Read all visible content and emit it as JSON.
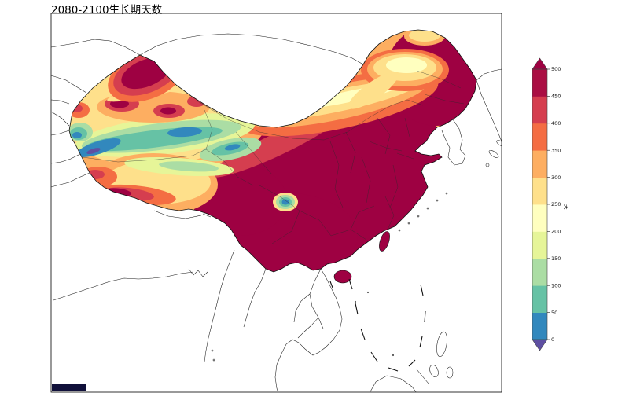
{
  "title": "2080-2100生长期天数",
  "colorbar": {
    "unit": "天",
    "ticks": [
      "500",
      "450",
      "400",
      "350",
      "300",
      "250",
      "200",
      "150",
      "100",
      "50",
      "0"
    ],
    "levels": [
      0,
      50,
      100,
      150,
      200,
      250,
      300,
      350,
      400,
      450,
      500
    ],
    "bin_colors_bottom_to_top": [
      "#3288bd",
      "#66c2a5",
      "#abdda4",
      "#e6f598",
      "#ffffbf",
      "#fee08b",
      "#fdae61",
      "#f46d43",
      "#d53e4f",
      "#aa0e43"
    ],
    "extend_over_color": "#9e0142",
    "extend_under_color": "#5e4fa2"
  },
  "map": {
    "border_color": "#111111",
    "coastline_color": "#1a1a1a"
  },
  "chart_data": {
    "type": "filled-contour-map",
    "title": "2080-2100生长期天数",
    "levels": [
      0,
      50,
      100,
      150,
      200,
      250,
      300,
      350,
      400,
      450,
      500
    ],
    "unit": "天",
    "colorbar_orientation": "vertical-right",
    "shaded_region": "China (province boundaries shown); surrounding Asia coastlines unshaded",
    "pattern": "high values (>450) over south/east China, northeast China and Tarim/north Xinjiang; low values (0-100) in a band across west Xinjiang-Qinghai; mid values over Tibet and Inner Mongolia"
  }
}
